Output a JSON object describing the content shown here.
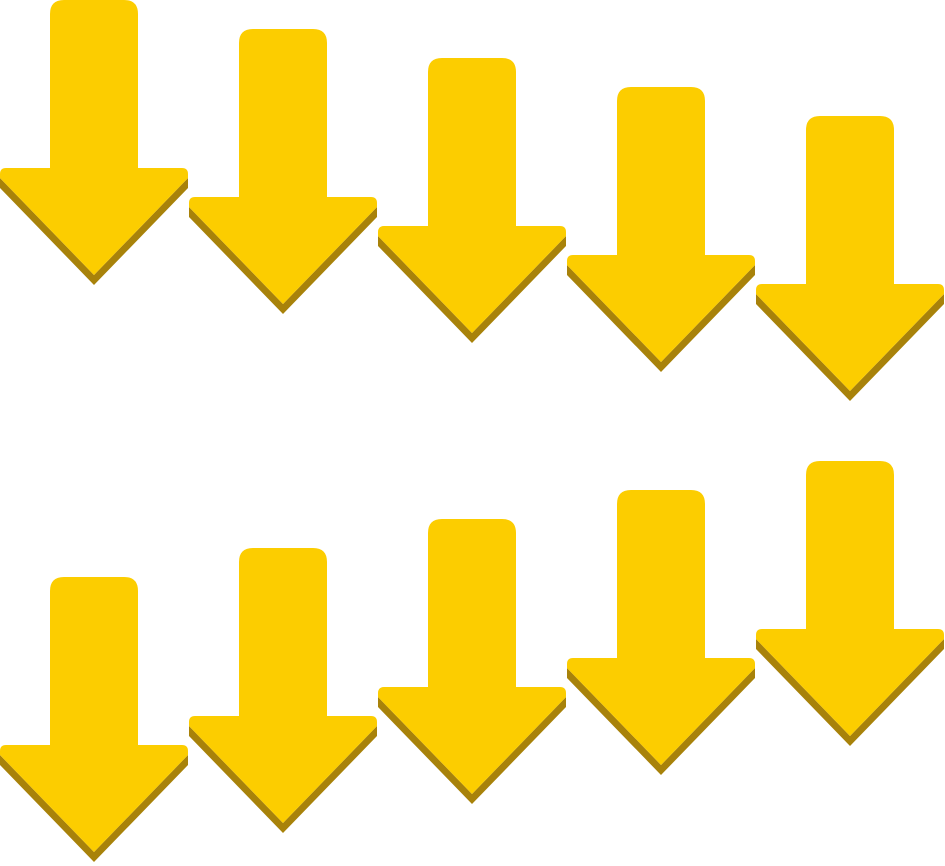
{
  "icon": "arrow-down-icon",
  "colors": {
    "fill": "#fccd00",
    "shadow": "#a8820a",
    "background": "#ffffff"
  },
  "rows": [
    {
      "name": "row-top",
      "count": 5,
      "direction": "down",
      "trend": "descending"
    },
    {
      "name": "row-bottom",
      "count": 5,
      "direction": "down",
      "trend": "ascending"
    }
  ]
}
